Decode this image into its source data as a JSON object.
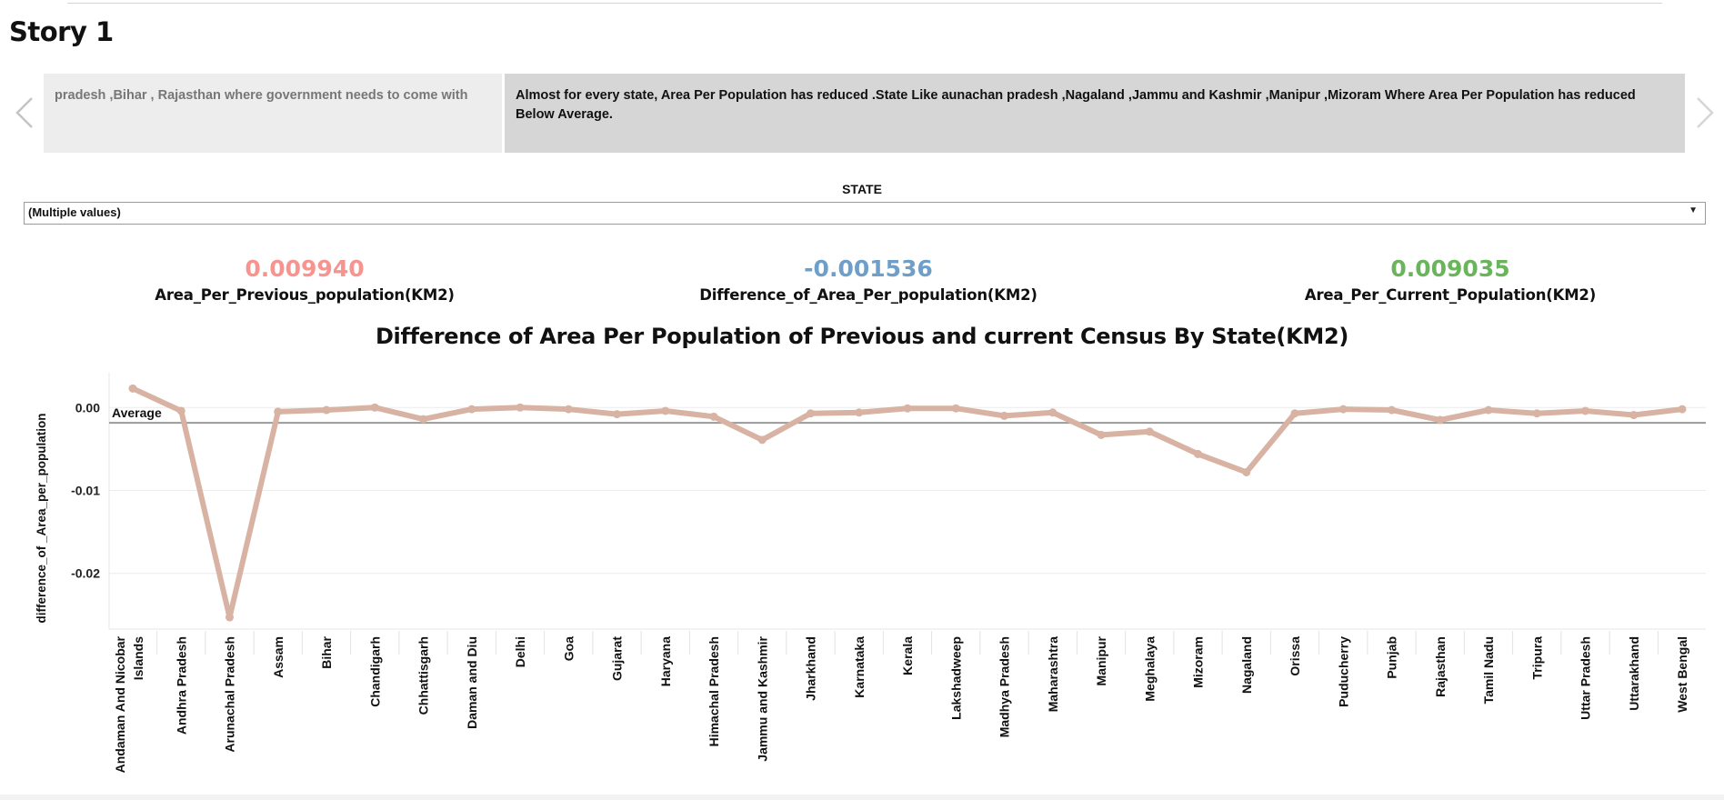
{
  "story": {
    "title": "Story 1",
    "prev_point_text": "pradesh ,Bihar , Rajasthan where government needs to come with",
    "active_point_text": "Almost for every state, Area Per Population has reduced  .State Like aunachan pradesh ,Nagaland ,Jammu and Kashmir ,Manipur ,Mizoram Where Area Per Population has reduced Below Average.",
    "prev_arrow": "‹",
    "next_arrow": "›"
  },
  "filter": {
    "label": "STATE",
    "value": "(Multiple values)",
    "caret": "▼"
  },
  "kpis": [
    {
      "value": "0.009940",
      "label": "Area_Per_Previous_population(KM2)",
      "color": "#f7948f"
    },
    {
      "value": "-0.001536",
      "label": "Difference_of_Area_Per_population(KM2)",
      "color": "#6f9fc9"
    },
    {
      "value": "0.009035",
      "label": "Area_Per_Current_Population(KM2)",
      "color": "#6ab55c"
    }
  ],
  "chart_data": {
    "type": "line",
    "title": "Difference of Area Per Population of Previous and current Census By State(KM2)",
    "ylabel": "difference_of _Area_per_population",
    "xlabel": "",
    "ylim": [
      -0.0265,
      0.0042
    ],
    "yticks": [
      0.0,
      -0.01,
      -0.02
    ],
    "ytick_labels": [
      "0.00",
      "-0.01",
      "-0.02"
    ],
    "grid": true,
    "reference_line": {
      "label": "Average",
      "value": -0.00185
    },
    "line_color": "#d8b2a2",
    "categories": [
      "Andaman And Nicobar Islands",
      "Andhra Pradesh",
      "Arunachal Pradesh",
      "Assam",
      "Bihar",
      "Chandigarh",
      "Chhattisgarh",
      "Daman and Diu",
      "Delhi",
      "Goa",
      "Gujarat",
      "Haryana",
      "Himachal Pradesh",
      "Jammu and Kashmir",
      "Jharkhand",
      "Karnataka",
      "Kerala",
      "Lakshadweep",
      "Madhya Pradesh",
      "Maharashtra",
      "Manipur",
      "Meghalaya",
      "Mizoram",
      "Nagaland",
      "Orissa",
      "Puducherry",
      "Punjab",
      "Rajasthan",
      "Tamil Nadu",
      "Tripura",
      "Uttar Pradesh",
      "Uttarakhand",
      "West Bengal"
    ],
    "values": [
      0.0023,
      -0.0004,
      -0.0253,
      -0.0005,
      -0.0003,
      0.0,
      -0.0014,
      -0.0002,
      0.0,
      -0.0002,
      -0.0008,
      -0.0004,
      -0.0011,
      -0.0039,
      -0.0007,
      -0.0006,
      -0.0001,
      -0.0001,
      -0.001,
      -0.0006,
      -0.0033,
      -0.0029,
      -0.0056,
      -0.0078,
      -0.0007,
      -0.0002,
      -0.0003,
      -0.0015,
      -0.0003,
      -0.0007,
      -0.0004,
      -0.0009,
      -0.0002
    ]
  }
}
